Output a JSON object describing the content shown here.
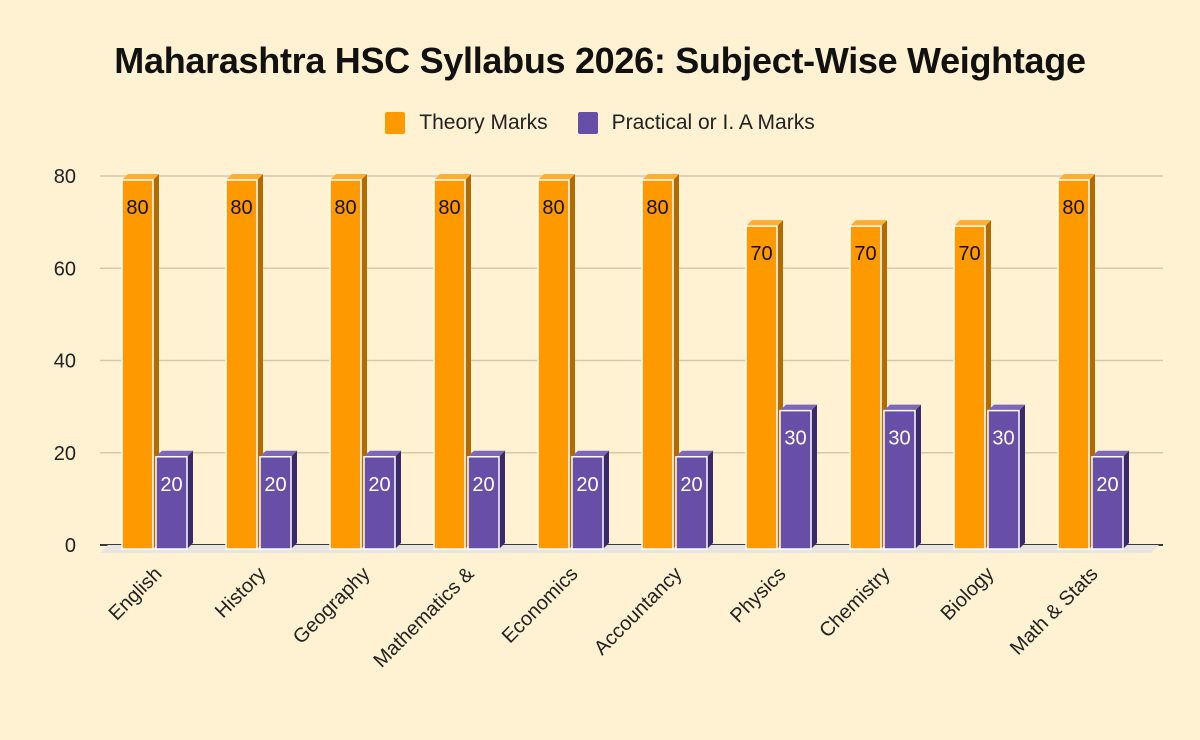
{
  "chart_data": {
    "type": "bar",
    "title": "Maharashtra HSC Syllabus 2026: Subject-Wise Weightage",
    "categories": [
      "English",
      "History",
      "Geography",
      "Mathematics &",
      "Economics",
      "Accountancy",
      "Physics",
      "Chemistry",
      "Biology",
      "Math & Stats"
    ],
    "series": [
      {
        "name": "Theory Marks",
        "color": "#ff9900",
        "values": [
          80,
          80,
          80,
          80,
          80,
          80,
          70,
          70,
          70,
          80
        ]
      },
      {
        "name": "Practical or I. A Marks",
        "color": "#674ea7",
        "values": [
          20,
          20,
          20,
          20,
          20,
          20,
          30,
          30,
          30,
          20
        ]
      }
    ],
    "xlabel": "",
    "ylabel": "",
    "ylim": [
      0,
      80
    ],
    "yticks": [
      0,
      20,
      40,
      60,
      80
    ],
    "grid": true,
    "legend_position": "top",
    "style": "3d-column"
  },
  "colors": {
    "background": "#fff2d2",
    "gridline": "#d4caa8",
    "axis": "#3a3a3a"
  }
}
